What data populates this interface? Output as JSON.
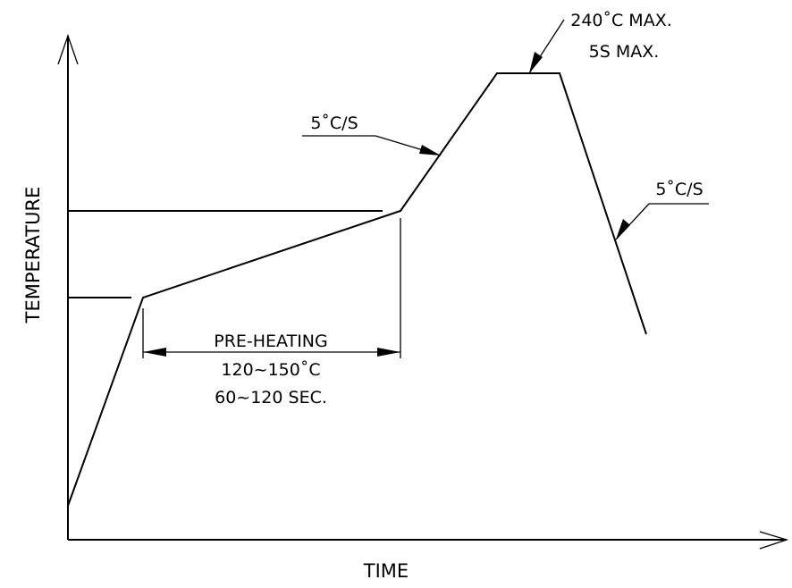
{
  "diagram": {
    "axes": {
      "x_label": "TIME",
      "y_label": "TEMPERATURE"
    },
    "annotations": {
      "peak_temp": "240˚C MAX.",
      "peak_time": "5S MAX.",
      "ramp_up_rate": "5˚C/S",
      "ramp_down_rate": "5˚C/S",
      "preheat_title": "PRE-HEATING",
      "preheat_temp": "120~150˚C",
      "preheat_time": "60~120 SEC."
    }
  }
}
